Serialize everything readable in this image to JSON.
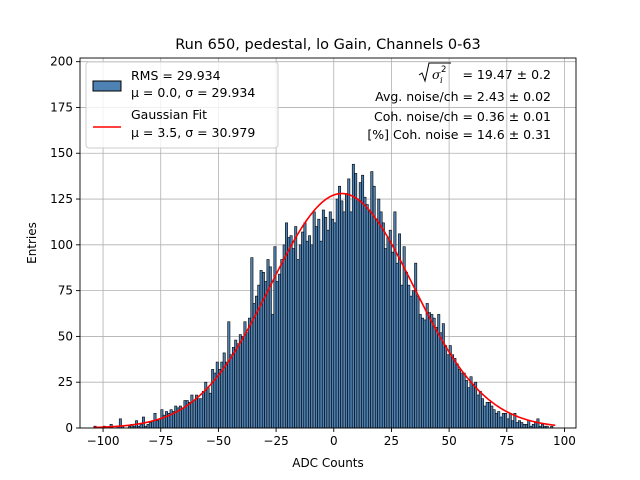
{
  "chart_data": {
    "type": "bar",
    "title": "Run 650, pedestal, lo Gain, Channels 0-63",
    "xlabel": "ADC Counts",
    "ylabel": "Entries",
    "xlim": [
      -110,
      105
    ],
    "ylim": [
      0,
      202
    ],
    "xticks": [
      -100,
      -75,
      -50,
      -25,
      0,
      25,
      50,
      75,
      100
    ],
    "yticks": [
      0,
      25,
      50,
      75,
      100,
      125,
      150,
      175,
      200
    ],
    "grid": true,
    "bin_width": 1,
    "histogram": {
      "name": "RMS = 29.934",
      "color": "#4f82b4",
      "edgecolor": "#000000",
      "bins": [
        [
          -104,
          1
        ],
        [
          -103,
          0
        ],
        [
          -102,
          0
        ],
        [
          -101,
          0
        ],
        [
          -100,
          1
        ],
        [
          -99,
          0
        ],
        [
          -98,
          0
        ],
        [
          -97,
          2
        ],
        [
          -96,
          0
        ],
        [
          -95,
          0
        ],
        [
          -94,
          1
        ],
        [
          -93,
          5
        ],
        [
          -92,
          1
        ],
        [
          -91,
          0
        ],
        [
          -90,
          0
        ],
        [
          -89,
          1
        ],
        [
          -88,
          2
        ],
        [
          -87,
          1
        ],
        [
          -86,
          4
        ],
        [
          -85,
          1
        ],
        [
          -84,
          2
        ],
        [
          -83,
          6
        ],
        [
          -82,
          1
        ],
        [
          -81,
          2
        ],
        [
          -80,
          3
        ],
        [
          -79,
          4
        ],
        [
          -78,
          8
        ],
        [
          -77,
          4
        ],
        [
          -76,
          5
        ],
        [
          -75,
          10
        ],
        [
          -74,
          7
        ],
        [
          -73,
          9
        ],
        [
          -72,
          8
        ],
        [
          -71,
          10
        ],
        [
          -70,
          9
        ],
        [
          -69,
          12
        ],
        [
          -68,
          11
        ],
        [
          -67,
          12
        ],
        [
          -66,
          11
        ],
        [
          -65,
          15
        ],
        [
          -64,
          15
        ],
        [
          -63,
          14
        ],
        [
          -62,
          18
        ],
        [
          -61,
          15
        ],
        [
          -60,
          18
        ],
        [
          -59,
          16
        ],
        [
          -58,
          16
        ],
        [
          -57,
          20
        ],
        [
          -56,
          25
        ],
        [
          -55,
          22
        ],
        [
          -54,
          19
        ],
        [
          -53,
          32
        ],
        [
          -52,
          30
        ],
        [
          -51,
          36
        ],
        [
          -50,
          32
        ],
        [
          -49,
          36
        ],
        [
          -48,
          41
        ],
        [
          -47,
          36
        ],
        [
          -46,
          58
        ],
        [
          -45,
          40
        ],
        [
          -44,
          44
        ],
        [
          -43,
          48
        ],
        [
          -42,
          46
        ],
        [
          -41,
          51
        ],
        [
          -40,
          50
        ],
        [
          -39,
          58
        ],
        [
          -38,
          52
        ],
        [
          -37,
          60
        ],
        [
          -36,
          93
        ],
        [
          -35,
          68
        ],
        [
          -34,
          72
        ],
        [
          -33,
          78
        ],
        [
          -32,
          86
        ],
        [
          -31,
          85
        ],
        [
          -30,
          80
        ],
        [
          -29,
          92
        ],
        [
          -28,
          88
        ],
        [
          -27,
          62
        ],
        [
          -26,
          99
        ],
        [
          -25,
          80
        ],
        [
          -24,
          84
        ],
        [
          -23,
          92
        ],
        [
          -22,
          100
        ],
        [
          -21,
          112
        ],
        [
          -20,
          104
        ],
        [
          -19,
          105
        ],
        [
          -18,
          98
        ],
        [
          -17,
          110
        ],
        [
          -16,
          92
        ],
        [
          -15,
          100
        ],
        [
          -14,
          107
        ],
        [
          -13,
          112
        ],
        [
          -12,
          102
        ],
        [
          -11,
          105
        ],
        [
          -10,
          100
        ],
        [
          -9,
          118
        ],
        [
          -8,
          110
        ],
        [
          -7,
          114
        ],
        [
          -6,
          102
        ],
        [
          -5,
          119
        ],
        [
          -4,
          115
        ],
        [
          -3,
          108
        ],
        [
          -2,
          118
        ],
        [
          -1,
          114
        ],
        [
          0,
          112
        ],
        [
          1,
          125
        ],
        [
          2,
          132
        ],
        [
          3,
          124
        ],
        [
          4,
          118
        ],
        [
          5,
          128
        ],
        [
          6,
          136
        ],
        [
          7,
          118
        ],
        [
          8,
          144
        ],
        [
          9,
          139
        ],
        [
          10,
          125
        ],
        [
          11,
          134
        ],
        [
          12,
          138
        ],
        [
          13,
          126
        ],
        [
          14,
          122
        ],
        [
          15,
          118
        ],
        [
          16,
          140
        ],
        [
          17,
          132
        ],
        [
          18,
          114
        ],
        [
          19,
          125
        ],
        [
          20,
          118
        ],
        [
          21,
          112
        ],
        [
          22,
          98
        ],
        [
          23,
          104
        ],
        [
          24,
          108
        ],
        [
          25,
          96
        ],
        [
          26,
          118
        ],
        [
          27,
          90
        ],
        [
          28,
          106
        ],
        [
          29,
          78
        ],
        [
          30,
          99
        ],
        [
          31,
          85
        ],
        [
          32,
          78
        ],
        [
          33,
          72
        ],
        [
          34,
          75
        ],
        [
          35,
          90
        ],
        [
          36,
          72
        ],
        [
          37,
          62
        ],
        [
          38,
          60
        ],
        [
          39,
          59
        ],
        [
          40,
          68
        ],
        [
          41,
          63
        ],
        [
          42,
          62
        ],
        [
          43,
          60
        ],
        [
          44,
          55
        ],
        [
          45,
          62
        ],
        [
          46,
          52
        ],
        [
          47,
          57
        ],
        [
          48,
          45
        ],
        [
          49,
          40
        ],
        [
          50,
          45
        ],
        [
          51,
          40
        ],
        [
          52,
          38
        ],
        [
          53,
          35
        ],
        [
          54,
          32
        ],
        [
          55,
          30
        ],
        [
          56,
          30
        ],
        [
          57,
          26
        ],
        [
          58,
          22
        ],
        [
          59,
          28
        ],
        [
          60,
          24
        ],
        [
          61,
          25
        ],
        [
          62,
          18
        ],
        [
          63,
          20
        ],
        [
          64,
          16
        ],
        [
          65,
          12
        ],
        [
          66,
          14
        ],
        [
          67,
          14
        ],
        [
          68,
          12
        ],
        [
          69,
          10
        ],
        [
          70,
          8
        ],
        [
          71,
          9
        ],
        [
          72,
          6
        ],
        [
          73,
          8
        ],
        [
          74,
          8
        ],
        [
          75,
          5
        ],
        [
          76,
          8
        ],
        [
          77,
          4
        ],
        [
          78,
          8
        ],
        [
          79,
          3
        ],
        [
          80,
          4
        ],
        [
          81,
          3
        ],
        [
          82,
          2
        ],
        [
          83,
          2
        ],
        [
          84,
          4
        ],
        [
          85,
          1
        ],
        [
          86,
          2
        ],
        [
          87,
          3
        ],
        [
          88,
          5
        ],
        [
          89,
          1
        ],
        [
          90,
          2
        ],
        [
          91,
          1
        ],
        [
          92,
          1
        ],
        [
          93,
          0
        ],
        [
          94,
          1
        ],
        [
          95,
          0
        ]
      ]
    },
    "fit": {
      "name": "Gaussian Fit",
      "color": "#ff0000",
      "mu": 3.5,
      "sigma": 30.979,
      "amplitude": 128,
      "x_range": [
        -104,
        96
      ]
    },
    "legend": {
      "placement": "top-left",
      "entries": [
        {
          "label_line1": "RMS = 29.934",
          "label_line2_text": "μ = 0.0, σ = 29.934",
          "swatch": "patch"
        },
        {
          "label_line1": "Gaussian Fit",
          "label_line2_text": "μ = 3.5, σ = 30.979",
          "swatch": "line"
        }
      ]
    },
    "annotations": {
      "placement": "top-right",
      "line1_value": " = 19.47 ± 0.2",
      "line2": "Avg. noise/ch = 2.43 ± 0.02",
      "line3": "Coh. noise/ch = 0.36 ± 0.01",
      "line4": "[%] Coh. noise = 14.6 ± 0.31"
    }
  }
}
